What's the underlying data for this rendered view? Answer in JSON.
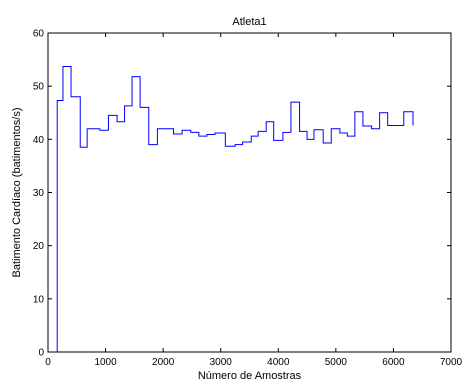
{
  "chart_data": {
    "type": "line",
    "line_style": "step",
    "title": "Atleta1",
    "xlabel": "Número de Amostras",
    "ylabel": "Batimento Cardíaco (batimentos/s)",
    "xlim": [
      0,
      7000
    ],
    "ylim": [
      0,
      60
    ],
    "xticks": [
      0,
      1000,
      2000,
      3000,
      4000,
      5000,
      6000,
      7000
    ],
    "yticks": [
      0,
      10,
      20,
      30,
      40,
      50,
      60
    ],
    "grid": false,
    "series": [
      {
        "color": "#0000ff",
        "points": [
          [
            160,
            0
          ],
          [
            160,
            47.3
          ],
          [
            260,
            47.3
          ],
          [
            260,
            53.7
          ],
          [
            400,
            53.7
          ],
          [
            400,
            48.0
          ],
          [
            560,
            48.0
          ],
          [
            560,
            38.5
          ],
          [
            680,
            38.5
          ],
          [
            680,
            42.0
          ],
          [
            900,
            42.0
          ],
          [
            900,
            41.7
          ],
          [
            1050,
            41.7
          ],
          [
            1050,
            44.5
          ],
          [
            1200,
            44.5
          ],
          [
            1200,
            43.3
          ],
          [
            1330,
            43.3
          ],
          [
            1330,
            46.3
          ],
          [
            1460,
            46.3
          ],
          [
            1460,
            51.8
          ],
          [
            1600,
            51.8
          ],
          [
            1600,
            46.0
          ],
          [
            1750,
            46.0
          ],
          [
            1750,
            39.0
          ],
          [
            1900,
            39.0
          ],
          [
            1900,
            42.0
          ],
          [
            2180,
            42.0
          ],
          [
            2180,
            41.0
          ],
          [
            2330,
            41.0
          ],
          [
            2330,
            41.7
          ],
          [
            2480,
            41.7
          ],
          [
            2480,
            41.3
          ],
          [
            2620,
            41.3
          ],
          [
            2620,
            40.6
          ],
          [
            2760,
            40.6
          ],
          [
            2760,
            40.9
          ],
          [
            2900,
            40.9
          ],
          [
            2900,
            41.2
          ],
          [
            3080,
            41.2
          ],
          [
            3080,
            38.7
          ],
          [
            3250,
            38.7
          ],
          [
            3250,
            39.0
          ],
          [
            3380,
            39.0
          ],
          [
            3380,
            39.5
          ],
          [
            3530,
            39.5
          ],
          [
            3530,
            40.6
          ],
          [
            3650,
            40.6
          ],
          [
            3650,
            41.5
          ],
          [
            3790,
            41.5
          ],
          [
            3790,
            43.3
          ],
          [
            3920,
            43.3
          ],
          [
            3920,
            39.8
          ],
          [
            4080,
            39.8
          ],
          [
            4080,
            41.3
          ],
          [
            4220,
            41.3
          ],
          [
            4220,
            47.0
          ],
          [
            4370,
            47.0
          ],
          [
            4370,
            41.5
          ],
          [
            4500,
            41.5
          ],
          [
            4500,
            40.0
          ],
          [
            4620,
            40.0
          ],
          [
            4620,
            41.8
          ],
          [
            4780,
            41.8
          ],
          [
            4780,
            39.3
          ],
          [
            4920,
            39.3
          ],
          [
            4920,
            42.0
          ],
          [
            5070,
            42.0
          ],
          [
            5070,
            41.2
          ],
          [
            5200,
            41.2
          ],
          [
            5200,
            40.6
          ],
          [
            5330,
            40.6
          ],
          [
            5330,
            45.2
          ],
          [
            5470,
            45.2
          ],
          [
            5470,
            42.5
          ],
          [
            5620,
            42.5
          ],
          [
            5620,
            42.0
          ],
          [
            5760,
            42.0
          ],
          [
            5760,
            45.0
          ],
          [
            5900,
            45.0
          ],
          [
            5900,
            42.6
          ],
          [
            6180,
            42.6
          ],
          [
            6180,
            45.2
          ],
          [
            6340,
            45.2
          ],
          [
            6340,
            42.6
          ]
        ]
      }
    ]
  }
}
